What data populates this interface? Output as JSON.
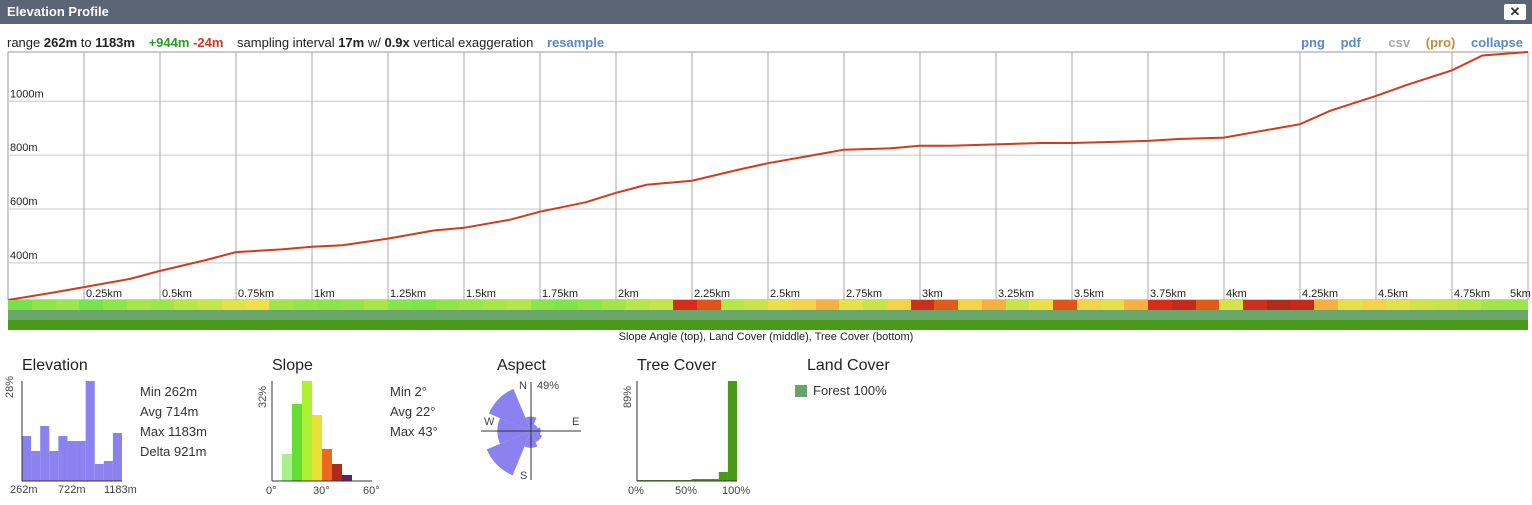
{
  "window": {
    "title": "Elevation Profile",
    "close_label": "✕"
  },
  "info": {
    "range_prefix": "range ",
    "range_min": "262m",
    "range_to": " to ",
    "range_max": "1183m",
    "gain": "+944m",
    "loss": "-24m",
    "sampling_prefix": "sampling interval ",
    "sampling_value": "17m",
    "sampling_mid": " w/ ",
    "exaggeration_value": "0.9x",
    "exaggeration_suffix": " vertical exaggeration",
    "resample_label": "resample"
  },
  "export_links": {
    "png": "png",
    "pdf": "pdf",
    "csv": "csv",
    "pro": "(pro)",
    "collapse": "collapse"
  },
  "strip_caption": "Slope Angle (top), Land Cover (middle), Tree Cover (bottom)",
  "colors": {
    "profile_line": "#d23a1f",
    "histogram_bar": "#8b82f0",
    "forest": "#6aa26a",
    "tree": "#4a9a1a"
  },
  "chart_data": {
    "type": "line",
    "ylim": [
      262,
      1183
    ],
    "xlim": [
      0,
      5
    ],
    "y_ticks": [
      "400m",
      "600m",
      "800m",
      "1000m"
    ],
    "y_tick_values": [
      400,
      600,
      800,
      1000
    ],
    "x_ticks": [
      "0.25km",
      "0.5km",
      "0.75km",
      "1km",
      "1.25km",
      "1.5km",
      "1.75km",
      "2km",
      "2.25km",
      "2.5km",
      "2.75km",
      "3km",
      "3.25km",
      "3.5km",
      "3.75km",
      "4km",
      "4.25km",
      "4.5km",
      "4.75km",
      "5km"
    ],
    "x_tick_values": [
      0.25,
      0.5,
      0.75,
      1,
      1.25,
      1.5,
      1.75,
      2,
      2.25,
      2.5,
      2.75,
      3,
      3.25,
      3.5,
      3.75,
      4,
      4.25,
      4.5,
      4.75,
      5
    ],
    "x": [
      0,
      0.15,
      0.25,
      0.4,
      0.5,
      0.65,
      0.75,
      0.9,
      1.0,
      1.1,
      1.25,
      1.4,
      1.5,
      1.65,
      1.75,
      1.9,
      2.0,
      2.1,
      2.25,
      2.4,
      2.5,
      2.65,
      2.75,
      2.9,
      3.0,
      3.1,
      3.25,
      3.4,
      3.5,
      3.65,
      3.75,
      3.85,
      4.0,
      4.1,
      4.25,
      4.35,
      4.5,
      4.6,
      4.75,
      4.85,
      5.0
    ],
    "y": [
      262,
      290,
      310,
      340,
      370,
      410,
      440,
      450,
      460,
      465,
      490,
      520,
      530,
      560,
      590,
      625,
      660,
      690,
      705,
      745,
      770,
      800,
      820,
      825,
      835,
      835,
      840,
      845,
      845,
      850,
      853,
      860,
      865,
      885,
      915,
      965,
      1020,
      1060,
      1115,
      1170,
      1183
    ]
  },
  "slope_strip": [
    "#79e04a",
    "#8de54a",
    "#9be64a",
    "#7ae24a",
    "#8ae64a",
    "#a6e648",
    "#9ee549",
    "#b6e64a",
    "#c3e64a",
    "#e2e24a",
    "#f2e04a",
    "#a3e549",
    "#94e44a",
    "#8be54a",
    "#93e44a",
    "#a8e648",
    "#87e44a",
    "#7fe34a",
    "#8de54a",
    "#9be64a",
    "#a8e648",
    "#b3e64a",
    "#8be54a",
    "#7fe34a",
    "#8de54a",
    "#a3e549",
    "#b6e64a",
    "#c3e64a",
    "#d62c1a",
    "#e0531a",
    "#b5e64a",
    "#c8e44a",
    "#ece04a",
    "#f2d34a",
    "#f6b042",
    "#e4e24a",
    "#c8e44a",
    "#f2d34a",
    "#c9311e",
    "#e05b1a",
    "#f2d34a",
    "#f6b042",
    "#c8e44a",
    "#ece04a",
    "#e0531a",
    "#f2d34a",
    "#e4e24a",
    "#f6b042",
    "#d62c1a",
    "#c42a1a",
    "#e05b1a",
    "#d8e24a",
    "#c9311e",
    "#b42a1a",
    "#c42a1a",
    "#f6b042",
    "#e8e04a",
    "#f2d34a",
    "#e4e24a",
    "#d0e44a",
    "#c8e44a",
    "#b5e64a",
    "#a3e549",
    "#9be64a"
  ],
  "elevation_panel": {
    "title": "Elevation",
    "max_pct": "28%",
    "bars": [
      0.45,
      0.3,
      0.55,
      0.3,
      0.45,
      0.4,
      0.4,
      1.0,
      0.17,
      0.2,
      0.48
    ],
    "x_labels": [
      "262m",
      "722m",
      "1183m"
    ],
    "stats": [
      "Min  262m",
      "Avg  714m",
      "Max  1183m",
      "Delta  921m"
    ]
  },
  "slope_panel": {
    "title": "Slope",
    "max_pct": "32%",
    "bars": [
      {
        "v": 0.27,
        "c": "#a8f08a"
      },
      {
        "v": 0.77,
        "c": "#66dd33"
      },
      {
        "v": 1.0,
        "c": "#aaf033"
      },
      {
        "v": 0.66,
        "c": "#e8df38"
      },
      {
        "v": 0.32,
        "c": "#ea6a22"
      },
      {
        "v": 0.17,
        "c": "#b42a1a"
      },
      {
        "v": 0.06,
        "c": "#6a1a6a"
      }
    ],
    "x_labels": [
      "0°",
      "30°",
      "60°"
    ],
    "stats": [
      "Min  2°",
      "Avg  22°",
      "Max  43°"
    ]
  },
  "aspect_panel": {
    "title": "Aspect",
    "n": "N",
    "pct": "49%",
    "e": "E",
    "w": "W",
    "s": "S",
    "petals": [
      0.3,
      0.15,
      0.2,
      0.25,
      0.35,
      1.0,
      0.7,
      0.95
    ]
  },
  "tree_panel": {
    "title": "Tree Cover",
    "max_pct": "89%",
    "x_labels": [
      "0%",
      "50%",
      "100%"
    ],
    "bars": [
      0.01,
      0.01,
      0.01,
      0.01,
      0.01,
      0.01,
      0.02,
      0.02,
      0.02,
      0.09,
      1.0
    ]
  },
  "landcover_panel": {
    "title": "Land Cover",
    "items": [
      {
        "label": "Forest 100%"
      }
    ]
  }
}
